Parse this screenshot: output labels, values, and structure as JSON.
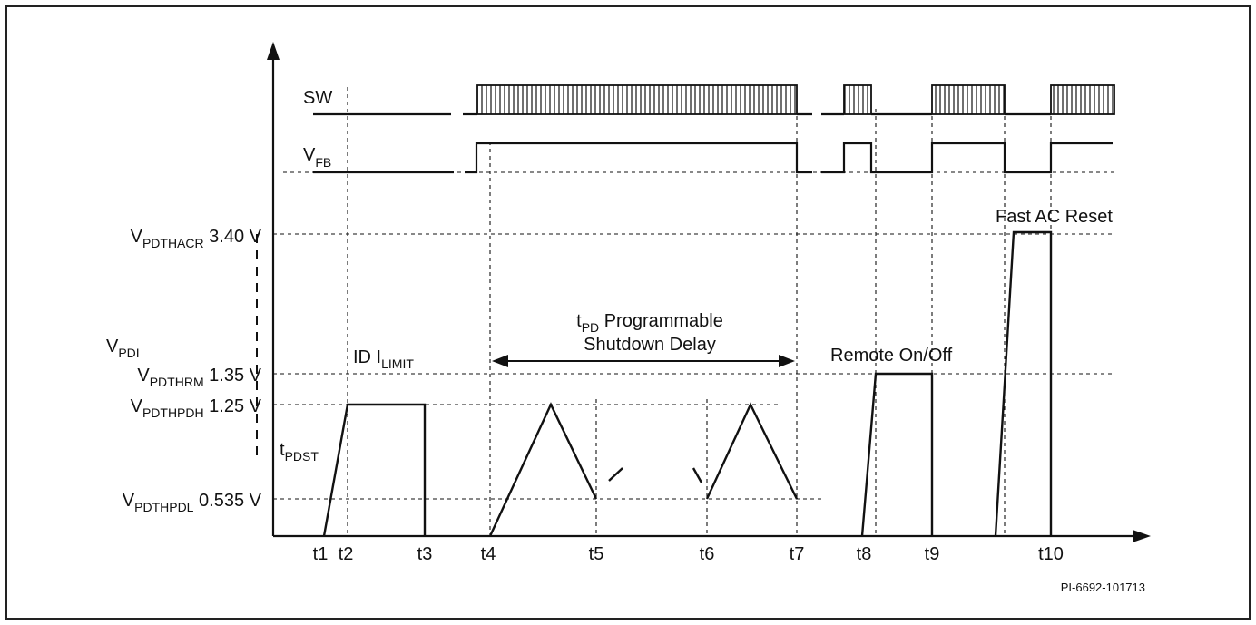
{
  "signals": {
    "sw": "SW",
    "vfb_main": "V",
    "vfb_sub": "FB"
  },
  "levels": {
    "acr": {
      "main": "V",
      "sub": "PDTHACR",
      "value": " 3.40 V"
    },
    "pdi": {
      "main": "V",
      "sub": "PDI"
    },
    "rm": {
      "main": "V",
      "sub": "PDTHRM",
      "value": " 1.35 V"
    },
    "pdh": {
      "main": "V",
      "sub": "PDTHPDH",
      "value": " 1.25 V"
    },
    "pdl": {
      "main": "V",
      "sub": "PDTHPDL",
      "value": " 0.535 V"
    }
  },
  "annotations": {
    "tpdst_main": "t",
    "tpdst_sub": "PDST",
    "ilimit_prefix": "ID I",
    "ilimit_sub": "LIMIT",
    "tpd_main": "t",
    "tpd_sub": "PD",
    "tpd_rest": " Programmable",
    "tpd_line2": "Shutdown Delay",
    "remote": "Remote On/Off",
    "fast_ac": "Fast AC Reset"
  },
  "time_markers": [
    "t1",
    "t2",
    "t3",
    "t4",
    "t5",
    "t6",
    "t7",
    "t8",
    "t9",
    "t10"
  ],
  "figure_id": "PI-6692-101713",
  "colors": {
    "ink": "#111111",
    "frame": "#222222"
  }
}
